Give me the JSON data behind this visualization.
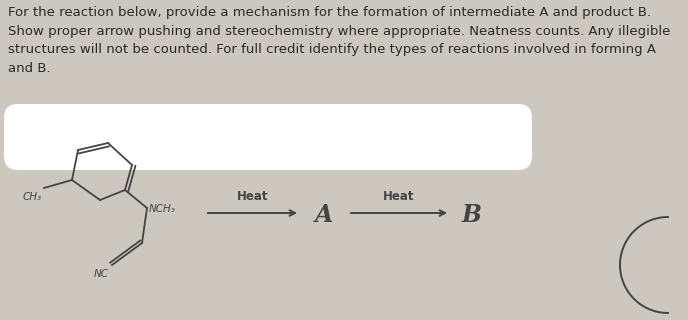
{
  "title_text": "For the reaction below, provide a mechanism for the formation of intermediate A and product B.\nShow proper arrow pushing and stereochemistry where appropriate. Neatness counts. Any illegible\nstructures will not be counted. For full credit identify the types of reactions involved in forming A\nand B.",
  "title_fontsize": 9.5,
  "title_color": "#2a2a2a",
  "bg_color": "#ccc8c0",
  "inner_bg_color": "#d6d2ca",
  "text_color": "#2a2a2a",
  "arrow1_label": "Heat",
  "arrow2_label": "Heat",
  "label_A": "A",
  "label_B": "B",
  "label_CH3": "CH₃",
  "label_NCH3": "NCH₃",
  "label_NC": "NC",
  "white_blob_color": "#ffffff",
  "molecule_color": "#444444"
}
